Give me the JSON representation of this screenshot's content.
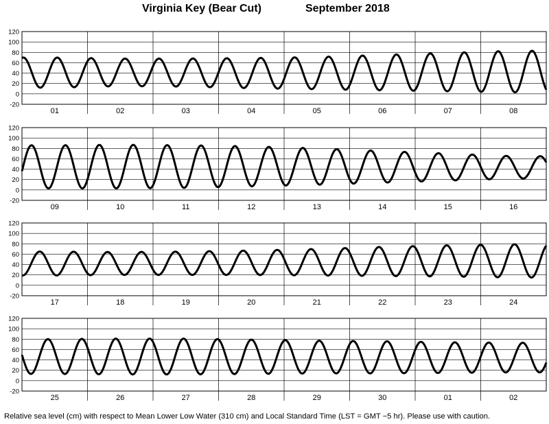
{
  "header": {
    "location": "Virginia Key (Bear Cut)",
    "period": "September   2018"
  },
  "footer": {
    "note": "Relative sea level (cm) with respect to Mean Lower Low Water (310 cm) and Local Standard Time (LST = GMT −5 hr). Please use with caution."
  },
  "chart_data": {
    "type": "line",
    "title": "Virginia Key (Bear Cut)",
    "subtitle": "September   2018",
    "y_ticks": [
      120,
      100,
      80,
      60,
      40,
      20,
      0,
      -20
    ],
    "ylim": [
      -20,
      120
    ],
    "grid": true,
    "panels": [
      {
        "days": [
          "01",
          "02",
          "03",
          "04",
          "05",
          "06",
          "07",
          "08"
        ],
        "high": [
          70,
          68,
          68,
          69,
          71,
          75,
          79,
          83
        ],
        "low": [
          12,
          15,
          14,
          11,
          9,
          7,
          5,
          3
        ]
      },
      {
        "days": [
          "09",
          "10",
          "11",
          "12",
          "13",
          "14",
          "15",
          "16"
        ],
        "high": [
          86,
          87,
          86,
          84,
          80,
          75,
          70,
          65
        ],
        "low": [
          3,
          3,
          4,
          7,
          10,
          14,
          18,
          22
        ]
      },
      {
        "days": [
          "17",
          "18",
          "19",
          "20",
          "21",
          "22",
          "23",
          "24"
        ],
        "high": [
          65,
          64,
          65,
          67,
          70,
          74,
          77,
          79
        ],
        "low": [
          19,
          20,
          20,
          20,
          19,
          18,
          17,
          15
        ]
      },
      {
        "days": [
          "25",
          "26",
          "27",
          "28",
          "29",
          "30",
          "01",
          "02"
        ],
        "high": [
          80,
          81,
          81,
          79,
          77,
          76,
          74,
          73
        ],
        "low": [
          13,
          12,
          12,
          13,
          14,
          14,
          15,
          16
        ]
      }
    ],
    "xlabel": "",
    "ylabel": ""
  }
}
